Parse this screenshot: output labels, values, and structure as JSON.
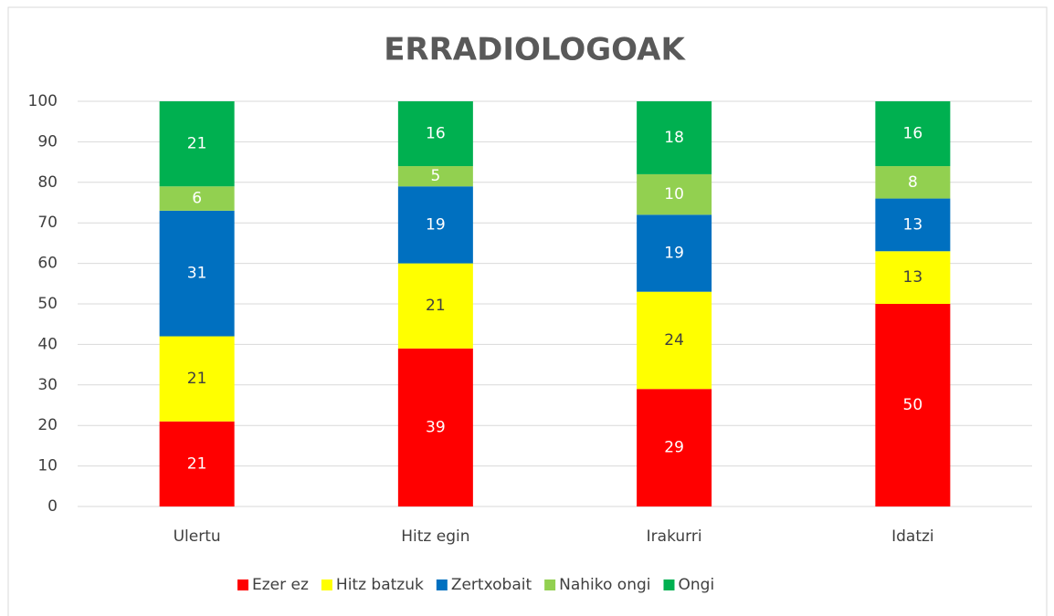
{
  "chart_data": {
    "type": "stacked_bar",
    "title": "ERRADIOLOGOAK",
    "categories": [
      "Ulertu",
      "Hitz egin",
      "Irakurri",
      "Idatzi"
    ],
    "series": [
      {
        "name": "Ezer ez",
        "color": "#ff0000",
        "label_color": "#ffffff",
        "values": [
          21,
          39,
          29,
          50
        ]
      },
      {
        "name": "Hitz batzuk",
        "color": "#ffff00",
        "label_color": "#404040",
        "values": [
          21,
          21,
          24,
          13
        ]
      },
      {
        "name": "Zertxobait",
        "color": "#0070c0",
        "label_color": "#ffffff",
        "values": [
          31,
          19,
          19,
          13
        ]
      },
      {
        "name": "Nahiko ongi",
        "color": "#92d050",
        "label_color": "#ffffff",
        "values": [
          6,
          5,
          10,
          8
        ]
      },
      {
        "name": "Ongi",
        "color": "#00b050",
        "label_color": "#ffffff",
        "values": [
          21,
          16,
          18,
          16
        ]
      }
    ],
    "ylim": [
      0,
      100
    ],
    "yticks": [
      0,
      10,
      20,
      30,
      40,
      50,
      60,
      70,
      80,
      90,
      100
    ],
    "grid": true,
    "legend": "bottom"
  }
}
